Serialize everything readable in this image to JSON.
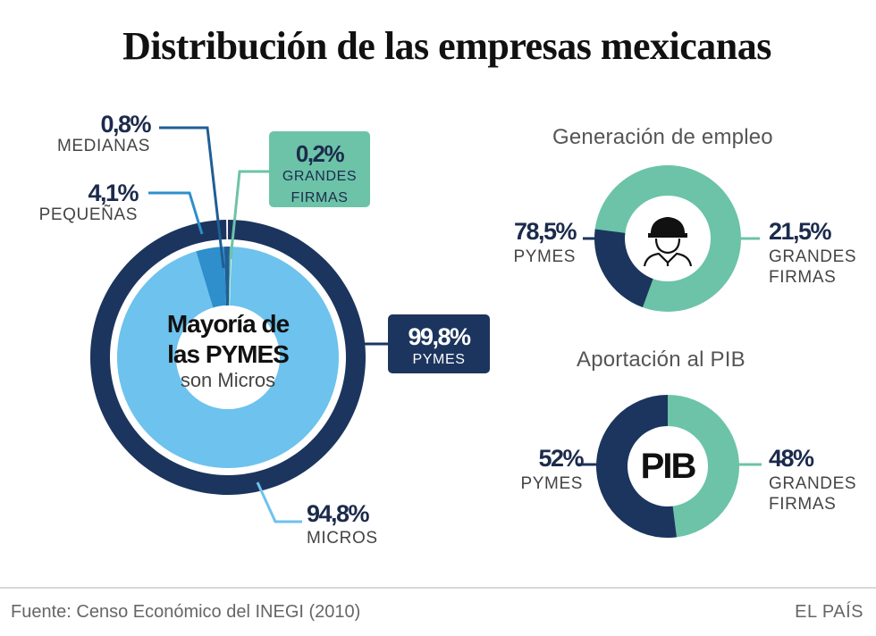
{
  "title": "Distribución de las empresas mexicanas",
  "colors": {
    "navy": "#1c355e",
    "light_blue": "#6dc2ee",
    "mid_blue": "#2e8fcc",
    "dark_blue": "#1f5e95",
    "teal": "#6cc3a8"
  },
  "main": {
    "center_line1": "Mayoría de",
    "center_line2": "las PYMES",
    "center_line3": "son Micros",
    "medianas": {
      "value": "0,8%",
      "label": "MEDIANAS"
    },
    "pequenas": {
      "value": "4,1%",
      "label": "PEQUEÑAS"
    },
    "grandes": {
      "value": "0,2%",
      "label_line1": "GRANDES",
      "label_line2": "FIRMAS"
    },
    "pymes": {
      "value": "99,8%",
      "label": "PYMES"
    },
    "micros": {
      "value": "94,8%",
      "label": "MICROS"
    }
  },
  "empleo": {
    "title": "Generación de empleo",
    "icon": "worker-helmet-icon",
    "pymes": {
      "value": "78,5%",
      "label": "PYMES"
    },
    "grandes": {
      "value": "21,5%",
      "label_line1": "GRANDES",
      "label_line2": "FIRMAS"
    }
  },
  "pib": {
    "title": "Aportación al PIB",
    "center": "PIB",
    "pymes": {
      "value": "52%",
      "label": "PYMES"
    },
    "grandes": {
      "value": "48%",
      "label_line1": "GRANDES",
      "label_line2": "FIRMAS"
    }
  },
  "footer": {
    "source": "Fuente: Censo Económico del INEGI (2010)",
    "brand": "EL PAÍS"
  },
  "chart_data": [
    {
      "type": "pie",
      "title": "Distribución de las empresas mexicanas",
      "categories": [
        "Micros",
        "Pequeñas",
        "Medianas",
        "Grandes firmas"
      ],
      "values": [
        94.8,
        4.1,
        0.8,
        0.2
      ],
      "outer_ring": {
        "categories": [
          "PYMES"
        ],
        "values": [
          99.8
        ]
      }
    },
    {
      "type": "pie",
      "title": "Generación de empleo",
      "categories": [
        "PYMES",
        "Grandes firmas"
      ],
      "values": [
        78.5,
        21.5
      ]
    },
    {
      "type": "pie",
      "title": "Aportación al PIB",
      "categories": [
        "PYMES",
        "Grandes firmas"
      ],
      "values": [
        52,
        48
      ]
    }
  ]
}
